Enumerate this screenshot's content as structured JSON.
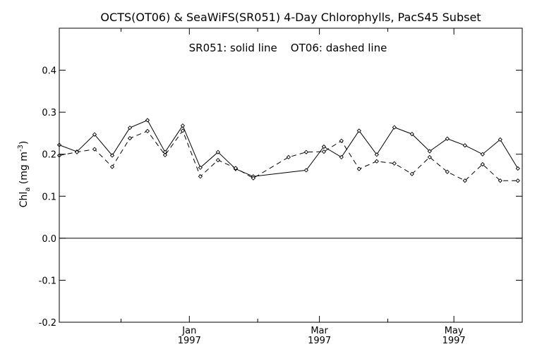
{
  "chart_data": {
    "type": "line",
    "title": "OCTS(OT06) & SeaWiFS(SR051) 4-Day Chlorophylls, PacS45 Subset",
    "annotation": "SR051: solid line    OT06: dashed line",
    "ylabel": {
      "main": "Chl",
      "sub": "a",
      "unit_pre": " (mg m",
      "unit_sup": "-3",
      "unit_post": ")"
    },
    "ylim": [
      -0.2,
      0.5
    ],
    "yticks": [
      -0.2,
      -0.1,
      0.0,
      0.1,
      0.2,
      0.3,
      0.4
    ],
    "ytick_labels": [
      "-0.2",
      "-0.1",
      "0.0",
      "0.1",
      "0.2",
      "0.3",
      "0.4"
    ],
    "xlim": [
      "1996-11-03",
      "1997-06-01"
    ],
    "xticks": [
      {
        "date": "1997-01-01",
        "month": "Jan",
        "year": "1997"
      },
      {
        "date": "1997-03-01",
        "month": "Mar",
        "year": "1997"
      },
      {
        "date": "1997-05-01",
        "month": "May",
        "year": "1997"
      }
    ],
    "xminor_ticks": [
      "1996-12-01",
      "1997-02-01",
      "1997-04-01"
    ],
    "zero_line": 0.0,
    "grid": false,
    "legend": "none",
    "series": [
      {
        "name": "SR051",
        "style": "solid",
        "dates": [
          "1996-11-03",
          "1996-11-11",
          "1996-11-19",
          "1996-11-27",
          "1996-12-05",
          "1996-12-13",
          "1996-12-21",
          "1996-12-29",
          "1997-01-06",
          "1997-01-14",
          "1997-01-22",
          "1997-01-30",
          "1997-02-23",
          "1997-03-03",
          "1997-03-11",
          "1997-03-19",
          "1997-03-27",
          "1997-04-04",
          "1997-04-12",
          "1997-04-20",
          "1997-04-28",
          "1997-05-06",
          "1997-05-14",
          "1997-05-22",
          "1997-05-30"
        ],
        "values": [
          0.222,
          0.206,
          0.247,
          0.197,
          0.263,
          0.281,
          0.205,
          0.268,
          0.168,
          0.205,
          0.165,
          0.147,
          0.162,
          0.218,
          0.193,
          0.256,
          0.199,
          0.264,
          0.248,
          0.207,
          0.237,
          0.221,
          0.2,
          0.235,
          0.166
        ]
      },
      {
        "name": "OT06",
        "style": "dashed",
        "dates": [
          "1996-11-03",
          "1996-11-11",
          "1996-11-19",
          "1996-11-27",
          "1996-12-05",
          "1996-12-13",
          "1996-12-21",
          "1996-12-29",
          "1997-01-06",
          "1997-01-14",
          "1997-01-22",
          "1997-01-30",
          "1997-02-15",
          "1997-02-23",
          "1997-03-03",
          "1997-03-11",
          "1997-03-19",
          "1997-03-27",
          "1997-04-04",
          "1997-04-12",
          "1997-04-20",
          "1997-04-28",
          "1997-05-06",
          "1997-05-14",
          "1997-05-22",
          "1997-05-30"
        ],
        "values": [
          0.197,
          0.205,
          0.212,
          0.17,
          0.238,
          0.255,
          0.198,
          0.256,
          0.147,
          0.186,
          0.167,
          0.143,
          0.193,
          0.205,
          0.206,
          0.232,
          0.165,
          0.183,
          0.178,
          0.153,
          0.193,
          0.158,
          0.137,
          0.176,
          0.137,
          0.137
        ]
      }
    ]
  }
}
